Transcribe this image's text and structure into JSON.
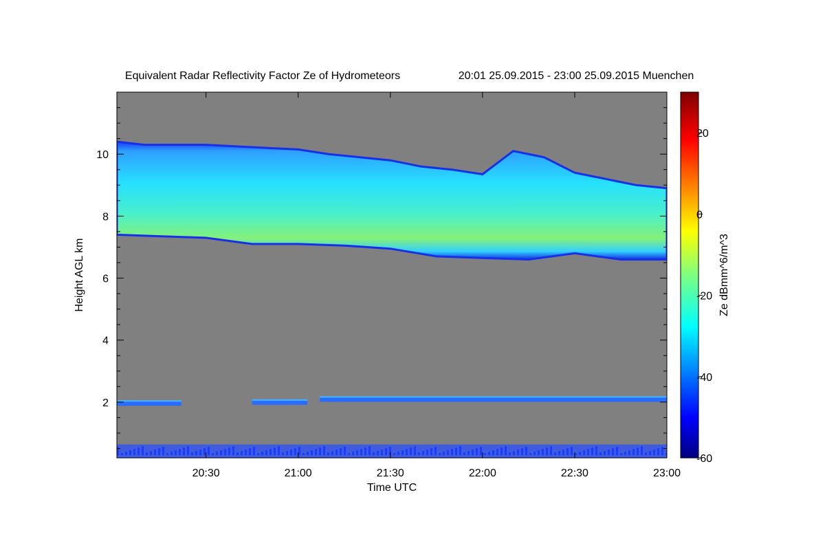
{
  "chart_data": {
    "type": "heatmap",
    "title": "Equivalent Radar Reflectivity Factor Ze of Hydrometeors",
    "subtitle": "20:01 25.09.2015 - 23:00 25.09.2015 Muenchen",
    "xlabel": "Time UTC",
    "ylabel": "Height AGL km",
    "xlim": [
      "20:01",
      "23:00"
    ],
    "ylim": [
      0.2,
      12
    ],
    "x_ticks": [
      "20:30",
      "21:00",
      "21:30",
      "22:00",
      "22:30",
      "23:00"
    ],
    "y_ticks": [
      2,
      4,
      6,
      8,
      10
    ],
    "background_color": "#808080",
    "colorbar": {
      "label": "Ze dBmm^6/m^3",
      "range": [
        -60,
        30
      ],
      "ticks": [
        -60,
        -40,
        -20,
        0,
        20
      ],
      "colormap": "jet"
    },
    "layers": [
      {
        "description_type": "cirrus",
        "top_km": [
          {
            "time": "20:01",
            "height": 10.4
          },
          {
            "time": "20:10",
            "height": 10.3
          },
          {
            "time": "20:30",
            "height": 10.3
          },
          {
            "time": "20:50",
            "height": 10.2
          },
          {
            "time": "21:00",
            "height": 10.15
          },
          {
            "time": "21:10",
            "height": 10.0
          },
          {
            "time": "21:20",
            "height": 9.9
          },
          {
            "time": "21:30",
            "height": 9.8
          },
          {
            "time": "21:40",
            "height": 9.6
          },
          {
            "time": "21:50",
            "height": 9.5
          },
          {
            "time": "22:00",
            "height": 9.35
          },
          {
            "time": "22:10",
            "height": 10.1
          },
          {
            "time": "22:20",
            "height": 9.9
          },
          {
            "time": "22:30",
            "height": 9.4
          },
          {
            "time": "22:40",
            "height": 9.2
          },
          {
            "time": "22:50",
            "height": 9.0
          },
          {
            "time": "23:00",
            "height": 8.9
          }
        ],
        "base_km": [
          {
            "time": "20:01",
            "height": 7.4
          },
          {
            "time": "20:15",
            "height": 7.35
          },
          {
            "time": "20:30",
            "height": 7.3
          },
          {
            "time": "20:45",
            "height": 7.1
          },
          {
            "time": "21:00",
            "height": 7.1
          },
          {
            "time": "21:15",
            "height": 7.05
          },
          {
            "time": "21:30",
            "height": 6.95
          },
          {
            "time": "21:45",
            "height": 6.7
          },
          {
            "time": "22:00",
            "height": 6.65
          },
          {
            "time": "22:15",
            "height": 6.6
          },
          {
            "time": "22:30",
            "height": 6.8
          },
          {
            "time": "22:45",
            "height": 6.6
          },
          {
            "time": "23:00",
            "height": 6.6
          }
        ],
        "max_ze_dbz": -10
      },
      {
        "description_type": "low layer",
        "segments": [
          {
            "start": "20:01",
            "end": "20:22",
            "height": 1.97
          },
          {
            "start": "20:45",
            "end": "21:03",
            "height": 2.0
          },
          {
            "start": "21:07",
            "end": "23:00",
            "height": 2.1
          }
        ],
        "max_ze_dbz": -35
      },
      {
        "description_type": "near-surface clutter",
        "height_range_km": [
          0.2,
          0.8
        ],
        "max_ze_dbz": -35
      }
    ]
  }
}
